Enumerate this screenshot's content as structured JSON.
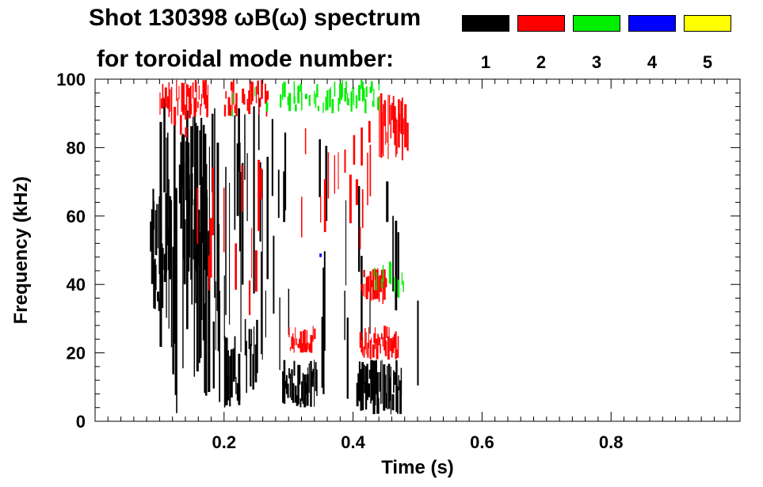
{
  "chart_data": {
    "type": "heatmap",
    "title": "Shot 130398 ωB(ω) spectrum",
    "subtitle": "for toroidal mode number:",
    "xlabel": "Time (s)",
    "ylabel": "Frequency (kHz)",
    "xlim": [
      0.0,
      1.0
    ],
    "ylim": [
      0,
      100
    ],
    "x_ticks": [
      0.2,
      0.4,
      0.6,
      0.8
    ],
    "x_tick_labels": [
      "0.2",
      "0.4",
      "0.6",
      "0.8"
    ],
    "y_ticks": [
      0,
      20,
      40,
      60,
      80,
      100
    ],
    "y_tick_labels": [
      "0",
      "20",
      "40",
      "60",
      "80",
      "100"
    ],
    "legend": [
      {
        "mode": "1",
        "color": "#000000"
      },
      {
        "mode": "2",
        "color": "#ff0000"
      },
      {
        "mode": "3",
        "color": "#00ee00"
      },
      {
        "mode": "4",
        "color": "#0000ff"
      },
      {
        "mode": "5",
        "color": "#ffff00"
      }
    ],
    "grid": false,
    "regions": [
      {
        "mode": 1,
        "t": [
          0.085,
          0.115
        ],
        "f": [
          40,
          68
        ],
        "density": 0.95
      },
      {
        "mode": 1,
        "t": [
          0.09,
          0.105
        ],
        "f": [
          32,
          48
        ],
        "density": 0.9
      },
      {
        "mode": 1,
        "t": [
          0.1,
          0.19
        ],
        "f": [
          2,
          95
        ],
        "density": 0.5
      },
      {
        "mode": 1,
        "t": [
          0.13,
          0.175
        ],
        "f": [
          40,
          90
        ],
        "density": 0.7
      },
      {
        "mode": 1,
        "t": [
          0.19,
          0.26
        ],
        "f": [
          2,
          95
        ],
        "density": 0.35
      },
      {
        "mode": 1,
        "t": [
          0.2,
          0.225
        ],
        "f": [
          4,
          25
        ],
        "density": 0.8
      },
      {
        "mode": 1,
        "t": [
          0.23,
          0.25
        ],
        "f": [
          8,
          30
        ],
        "density": 0.5
      },
      {
        "mode": 1,
        "t": [
          0.26,
          0.3
        ],
        "f": [
          2,
          90
        ],
        "density": 0.2
      },
      {
        "mode": 1,
        "t": [
          0.29,
          0.345
        ],
        "f": [
          4,
          18
        ],
        "density": 0.85
      },
      {
        "mode": 1,
        "t": [
          0.345,
          0.4
        ],
        "f": [
          2,
          85
        ],
        "density": 0.15
      },
      {
        "mode": 1,
        "t": [
          0.405,
          0.475
        ],
        "f": [
          2,
          18
        ],
        "density": 0.9
      },
      {
        "mode": 1,
        "t": [
          0.4,
          0.47
        ],
        "f": [
          20,
          80
        ],
        "density": 0.2
      },
      {
        "mode": 1,
        "t": [
          0.46,
          0.5
        ],
        "f": [
          2,
          72
        ],
        "density": 0.08
      },
      {
        "mode": 2,
        "t": [
          0.1,
          0.14
        ],
        "f": [
          82,
          100
        ],
        "density": 0.4
      },
      {
        "mode": 2,
        "t": [
          0.135,
          0.175
        ],
        "f": [
          88,
          100
        ],
        "density": 0.6
      },
      {
        "mode": 2,
        "t": [
          0.14,
          0.26
        ],
        "f": [
          30,
          80
        ],
        "density": 0.12
      },
      {
        "mode": 2,
        "t": [
          0.2,
          0.27
        ],
        "f": [
          88,
          100
        ],
        "density": 0.35
      },
      {
        "mode": 2,
        "t": [
          0.3,
          0.34
        ],
        "f": [
          20,
          28
        ],
        "density": 0.6
      },
      {
        "mode": 2,
        "t": [
          0.29,
          0.44
        ],
        "f": [
          50,
          88
        ],
        "density": 0.12
      },
      {
        "mode": 2,
        "t": [
          0.41,
          0.47
        ],
        "f": [
          18,
          28
        ],
        "density": 0.6
      },
      {
        "mode": 2,
        "t": [
          0.41,
          0.45
        ],
        "f": [
          34,
          45
        ],
        "density": 0.6
      },
      {
        "mode": 2,
        "t": [
          0.44,
          0.485
        ],
        "f": [
          76,
          96
        ],
        "density": 0.75
      },
      {
        "mode": 3,
        "t": [
          0.19,
          0.31
        ],
        "f": [
          88,
          100
        ],
        "density": 0.12
      },
      {
        "mode": 3,
        "t": [
          0.29,
          0.45
        ],
        "f": [
          90,
          100
        ],
        "density": 0.35
      },
      {
        "mode": 3,
        "t": [
          0.32,
          0.38
        ],
        "f": [
          40,
          90
        ],
        "density": 0.03
      },
      {
        "mode": 3,
        "t": [
          0.43,
          0.48
        ],
        "f": [
          36,
          48
        ],
        "density": 0.25
      },
      {
        "mode": 4,
        "t": [
          0.34,
          0.4
        ],
        "f": [
          48,
          52
        ],
        "density": 0.02
      }
    ]
  }
}
